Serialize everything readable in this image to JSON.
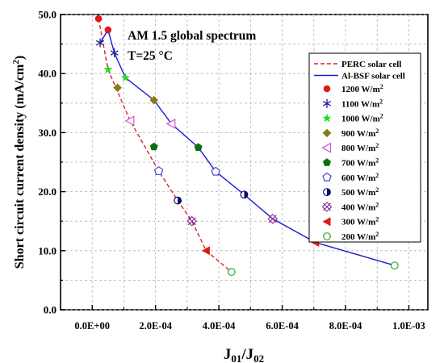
{
  "chart_data": {
    "type": "scatter",
    "annotation_lines": [
      "AM 1.5 global spectrum",
      "T=25 °C"
    ],
    "xlabel_main": "J",
    "xlabel_sub1": "01",
    "xlabel_sep": "/J",
    "xlabel_sub2": "02",
    "ylabel_main": "Short circuit current density (mA/cm",
    "ylabel_sup": "2",
    "ylabel_end": ")",
    "xlim": [
      -0.0001,
      0.00106
    ],
    "ylim": [
      0,
      50
    ],
    "x_ticks": [
      0,
      0.0002,
      0.0004,
      0.0006,
      0.0008,
      0.001
    ],
    "x_tick_labels": [
      "0.0E+00",
      "2.0E-04",
      "4.0E-04",
      "6.0E-04",
      "8.0E-04",
      "1.0E-03"
    ],
    "y_ticks": [
      0,
      10,
      20,
      30,
      40,
      50
    ],
    "y_tick_labels": [
      "0.0",
      "10.0",
      "20.0",
      "30.0",
      "40.0",
      "50.0"
    ],
    "grid": true,
    "legend_position": "top-right",
    "lines": [
      {
        "name": "PERC solar cell",
        "color": "#e02020",
        "dash": true,
        "x": [
          2e-05,
          5e-05,
          0.00012,
          0.00021,
          0.00027,
          0.000315,
          0.00036,
          0.00044
        ],
        "y": [
          49.3,
          40.7,
          32.0,
          23.5,
          18.5,
          15.0,
          10.0,
          6.4
        ]
      },
      {
        "name": "Al-BSF solar cell",
        "color": "#1c1cd0",
        "dash": false,
        "x": [
          2.5e-05,
          5e-05,
          7e-05,
          0.000105,
          0.000195,
          0.00025,
          0.000335,
          0.00039,
          0.00048,
          0.00057,
          0.000705,
          0.000955
        ],
        "y": [
          45.2,
          47.4,
          43.5,
          39.3,
          35.5,
          31.5,
          27.5,
          23.4,
          19.5,
          15.4,
          11.4,
          7.5
        ]
      }
    ],
    "series": [
      {
        "name": "1200 W/m",
        "marker": "circle",
        "color": "#e01818",
        "points": [
          [
            2e-05,
            49.3
          ],
          [
            5e-05,
            47.4
          ]
        ]
      },
      {
        "name": "1100 W/m",
        "marker": "asterisk",
        "color": "#1e1e90",
        "points": [
          [
            2.5e-05,
            45.2
          ],
          [
            7e-05,
            43.5
          ]
        ]
      },
      {
        "name": "1000 W/m",
        "marker": "star",
        "color": "#22dd22",
        "points": [
          [
            5e-05,
            40.7
          ],
          [
            0.000105,
            39.3
          ]
        ]
      },
      {
        "name": "900 W/m",
        "marker": "diamond",
        "color": "#8b7a12",
        "points": [
          [
            8e-05,
            37.6
          ],
          [
            0.000195,
            35.5
          ]
        ]
      },
      {
        "name": "800 W/m",
        "marker": "triangle-left-open",
        "color": "#d455d4",
        "points": [
          [
            0.00012,
            32.0
          ],
          [
            0.00025,
            31.5
          ]
        ]
      },
      {
        "name": "700 W/m",
        "marker": "pentagon",
        "color": "#0e6f0e",
        "points": [
          [
            0.000195,
            27.6
          ],
          [
            0.000335,
            27.5
          ]
        ]
      },
      {
        "name": "600 W/m",
        "marker": "pentagon-open",
        "color": "#4545d8",
        "points": [
          [
            0.00021,
            23.5
          ],
          [
            0.00039,
            23.4
          ]
        ]
      },
      {
        "name": "500 W/m",
        "marker": "half-circle",
        "color": "#0a0a6a",
        "points": [
          [
            0.00027,
            18.5
          ],
          [
            0.00048,
            19.5
          ]
        ]
      },
      {
        "name": "400 W/m",
        "marker": "x-square",
        "color": "#8a2aa0",
        "points": [
          [
            0.000315,
            15.0
          ],
          [
            0.00057,
            15.4
          ]
        ]
      },
      {
        "name": "300 W/m",
        "marker": "triangle-left",
        "color": "#e01818",
        "points": [
          [
            0.00036,
            10.0
          ],
          [
            0.000705,
            11.4
          ]
        ]
      },
      {
        "name": "200 W/m",
        "marker": "circle-open",
        "color": "#2aa82a",
        "points": [
          [
            0.00044,
            6.4
          ],
          [
            0.000955,
            7.5
          ]
        ]
      }
    ],
    "legend_unit_sup": "2"
  }
}
